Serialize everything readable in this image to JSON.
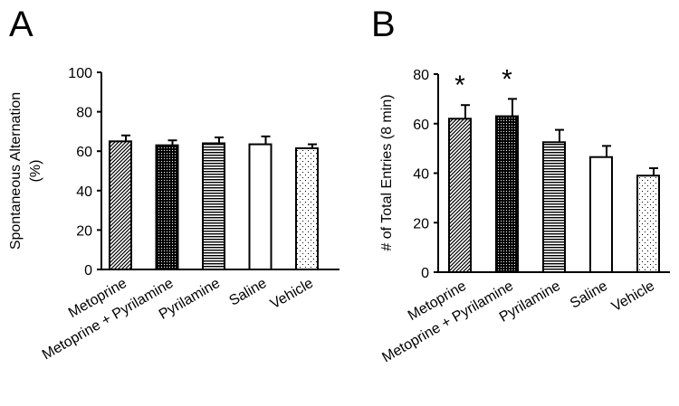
{
  "chart_data": [
    {
      "panel": "A",
      "type": "bar",
      "ylabel_lines": [
        "Spontaneous Alternation",
        "(%)"
      ],
      "ylim": [
        0,
        100
      ],
      "yticks": [
        0,
        20,
        40,
        60,
        80,
        100
      ],
      "categories": [
        "Metoprine",
        "Metoprine + Pyrilamine",
        "Pyrilamine",
        "Saline",
        "Vehicle"
      ],
      "values": [
        65,
        63,
        64,
        63.5,
        61.5
      ],
      "errors": [
        3,
        2.5,
        3,
        4,
        2
      ],
      "significance": [
        "",
        "",
        "",
        "",
        ""
      ],
      "patterns": [
        "diagonal",
        "dots-dense",
        "horizontal",
        "none",
        "dots-sparse"
      ],
      "grid": false,
      "legend": "none"
    },
    {
      "panel": "B",
      "type": "bar",
      "ylabel_lines": [
        "# of Total Entries (8 min)"
      ],
      "ylim": [
        0,
        80
      ],
      "yticks": [
        0,
        20,
        40,
        60,
        80
      ],
      "categories": [
        "Metoprine",
        "Metoprine + Pyrilamine",
        "Pyrilamine",
        "Saline",
        "Vehicle"
      ],
      "values": [
        62,
        63,
        52.5,
        46.5,
        39
      ],
      "errors": [
        5.5,
        7,
        5,
        4.5,
        3
      ],
      "significance": [
        "*",
        "*",
        "",
        "",
        ""
      ],
      "patterns": [
        "diagonal",
        "dots-dense",
        "horizontal",
        "none",
        "dots-sparse"
      ],
      "grid": false,
      "legend": "none"
    }
  ]
}
